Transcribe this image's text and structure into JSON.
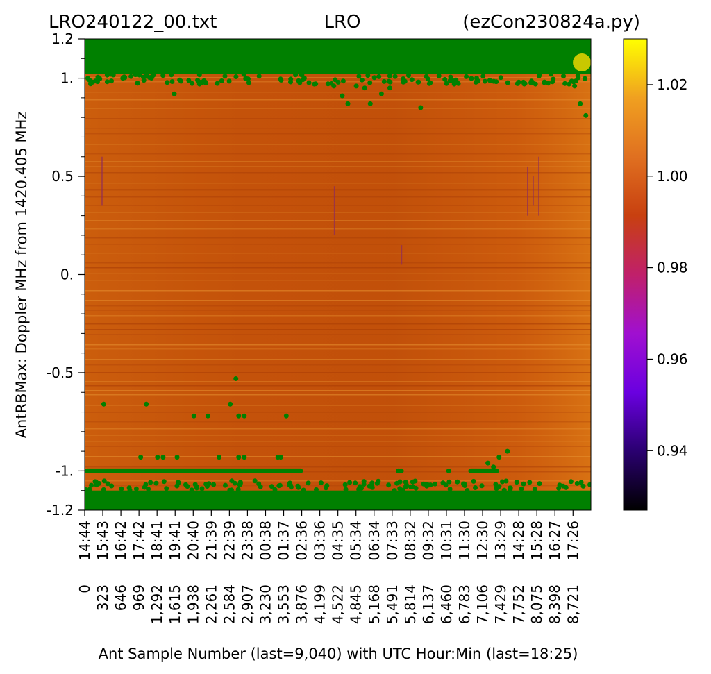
{
  "title": {
    "left": "LRO240122_00.txt",
    "center": "LRO",
    "right": "(ezCon230824a.py)"
  },
  "chart_data": {
    "type": "heatmap",
    "ylabel": "AntRBMax:  Doppler MHz from 1420.405 MHz",
    "xlabel": "Ant Sample Number (last=9,040) with UTC Hour:Min (last=18:25)",
    "ylim": [
      -1.2,
      1.2
    ],
    "xlim": [
      0,
      9040
    ],
    "yticks": [
      {
        "value": 1.2,
        "label": "1.2"
      },
      {
        "value": 1.0,
        "label": "1."
      },
      {
        "value": 0.5,
        "label": "0.5"
      },
      {
        "value": 0.0,
        "label": "0."
      },
      {
        "value": -0.5,
        "label": "-0.5"
      },
      {
        "value": -1.0,
        "label": "-1."
      },
      {
        "value": -1.2,
        "label": "-1.2"
      }
    ],
    "xticks": [
      {
        "value": 0,
        "sample": "0",
        "time": "14:44"
      },
      {
        "value": 323,
        "sample": "323",
        "time": "15:43"
      },
      {
        "value": 646,
        "sample": "646",
        "time": "16:42"
      },
      {
        "value": 969,
        "sample": "969",
        "time": "17:42"
      },
      {
        "value": 1292,
        "sample": "1,292",
        "time": "18:41"
      },
      {
        "value": 1615,
        "sample": "1,615",
        "time": "19:41"
      },
      {
        "value": 1938,
        "sample": "1,938",
        "time": "20:40"
      },
      {
        "value": 2261,
        "sample": "2,261",
        "time": "21:39"
      },
      {
        "value": 2584,
        "sample": "2,584",
        "time": "22:39"
      },
      {
        "value": 2907,
        "sample": "2,907",
        "time": "23:38"
      },
      {
        "value": 3230,
        "sample": "3,230",
        "time": "00:38"
      },
      {
        "value": 3553,
        "sample": "3,553",
        "time": "01:37"
      },
      {
        "value": 3876,
        "sample": "3,876",
        "time": "02:36"
      },
      {
        "value": 4199,
        "sample": "4,199",
        "time": "03:36"
      },
      {
        "value": 4522,
        "sample": "4,522",
        "time": "04:35"
      },
      {
        "value": 4845,
        "sample": "4,845",
        "time": "05:34"
      },
      {
        "value": 5168,
        "sample": "5,168",
        "time": "06:34"
      },
      {
        "value": 5491,
        "sample": "5,491",
        "time": "07:33"
      },
      {
        "value": 5814,
        "sample": "5,814",
        "time": "08:32"
      },
      {
        "value": 6137,
        "sample": "6,137",
        "time": "09:32"
      },
      {
        "value": 6460,
        "sample": "6,460",
        "time": "10:31"
      },
      {
        "value": 6783,
        "sample": "6,783",
        "time": "11:30"
      },
      {
        "value": 7106,
        "sample": "7,106",
        "time": "12:30"
      },
      {
        "value": 7429,
        "sample": "7,429",
        "time": "13:29"
      },
      {
        "value": 7752,
        "sample": "7,752",
        "time": "14:28"
      },
      {
        "value": 8075,
        "sample": "8,075",
        "time": "15:28"
      },
      {
        "value": 8398,
        "sample": "8,398",
        "time": "16:27"
      },
      {
        "value": 8721,
        "sample": "8,721",
        "time": "17:26"
      }
    ],
    "colorbar": {
      "min": 0.927,
      "max": 1.03,
      "ticks": [
        {
          "value": 0.94,
          "label": "0.94"
        },
        {
          "value": 0.96,
          "label": "0.96"
        },
        {
          "value": 0.98,
          "label": "0.98"
        },
        {
          "value": 1.0,
          "label": "1.00"
        },
        {
          "value": 1.02,
          "label": "1.02"
        }
      ],
      "colormap": [
        "#000000",
        "#2a0070",
        "#6a00e0",
        "#a010d0",
        "#c0206a",
        "#c84010",
        "#e07020",
        "#f0a020",
        "#ffff00"
      ]
    },
    "background_value": 0.988,
    "colors": {
      "heat_base": "#c8540a",
      "peak_markers": "#008000",
      "marker_current": "#c8c800"
    },
    "peak_bands": [
      {
        "name": "upper band",
        "y_from": 1.02,
        "y_to": 1.2
      },
      {
        "name": "lower band",
        "y_from": -1.2,
        "y_to": -1.1
      }
    ],
    "peak_line": {
      "y": -1.0,
      "segments": [
        [
          0,
          3900
        ],
        [
          5600,
          5700
        ],
        [
          6850,
          7400
        ]
      ]
    },
    "scatter_points": [
      {
        "x": 340,
        "y": -0.66
      },
      {
        "x": 1100,
        "y": -0.66
      },
      {
        "x": 1950,
        "y": -0.72
      },
      {
        "x": 2200,
        "y": -0.72
      },
      {
        "x": 2600,
        "y": -0.66
      },
      {
        "x": 2700,
        "y": -0.53
      },
      {
        "x": 2750,
        "y": -0.72
      },
      {
        "x": 2850,
        "y": -0.72
      },
      {
        "x": 3600,
        "y": -0.72
      },
      {
        "x": 1000,
        "y": -0.93
      },
      {
        "x": 1300,
        "y": -0.93
      },
      {
        "x": 1400,
        "y": -0.93
      },
      {
        "x": 1650,
        "y": -0.93
      },
      {
        "x": 2400,
        "y": -0.93
      },
      {
        "x": 2750,
        "y": -0.93
      },
      {
        "x": 2850,
        "y": -0.93
      },
      {
        "x": 3450,
        "y": -0.93
      },
      {
        "x": 3500,
        "y": -0.93
      },
      {
        "x": 7400,
        "y": -0.93
      },
      {
        "x": 7550,
        "y": -0.9
      },
      {
        "x": 7200,
        "y": -0.96
      },
      {
        "x": 7300,
        "y": -0.98
      },
      {
        "x": 6500,
        "y": -1.0
      },
      {
        "x": 5600,
        "y": -1.0
      },
      {
        "x": 1600,
        "y": 0.92
      },
      {
        "x": 2050,
        "y": 0.97
      },
      {
        "x": 4100,
        "y": 0.97
      },
      {
        "x": 4450,
        "y": 0.96
      },
      {
        "x": 4600,
        "y": 0.91
      },
      {
        "x": 4700,
        "y": 0.87
      },
      {
        "x": 4850,
        "y": 0.96
      },
      {
        "x": 5000,
        "y": 0.95
      },
      {
        "x": 5100,
        "y": 0.87
      },
      {
        "x": 5300,
        "y": 0.92
      },
      {
        "x": 5450,
        "y": 0.95
      },
      {
        "x": 6000,
        "y": 0.85
      },
      {
        "x": 6600,
        "y": 0.97
      },
      {
        "x": 7850,
        "y": 0.97
      },
      {
        "x": 8050,
        "y": 0.97
      },
      {
        "x": 8650,
        "y": 0.97
      },
      {
        "x": 8750,
        "y": 0.96
      },
      {
        "x": 8850,
        "y": 0.87
      },
      {
        "x": 8950,
        "y": 0.81
      }
    ],
    "current_marker": {
      "x": 8880,
      "y": 1.08
    },
    "dark_streaks": [
      {
        "x": 300,
        "y_from": 0.35,
        "y_to": 0.6
      },
      {
        "x": 4450,
        "y_from": 0.2,
        "y_to": 0.45
      },
      {
        "x": 5650,
        "y_from": 0.05,
        "y_to": 0.15
      },
      {
        "x": 7900,
        "y_from": 0.3,
        "y_to": 0.55
      },
      {
        "x": 8000,
        "y_from": 0.35,
        "y_to": 0.5
      },
      {
        "x": 8100,
        "y_from": 0.3,
        "y_to": 0.6
      }
    ]
  }
}
